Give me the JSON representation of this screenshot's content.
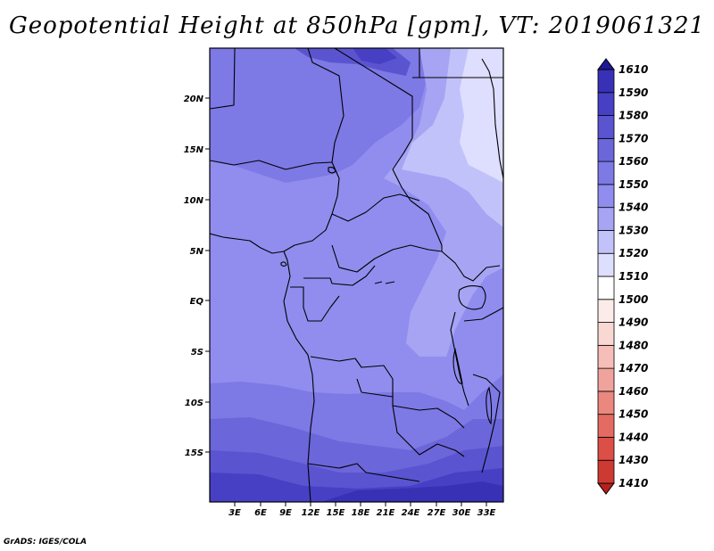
{
  "title": "Geopotential Height at 850hPa [gpm], VT: 2019061321",
  "credit": "GrADS: IGES/COLA",
  "map": {
    "variable": "Geopotential Height",
    "level": "850hPa",
    "units": "gpm",
    "valid_time": "2019061321",
    "lon_labels": [
      "3E",
      "6E",
      "9E",
      "12E",
      "15E",
      "18E",
      "21E",
      "24E",
      "27E",
      "30E",
      "33E"
    ],
    "lat_labels": [
      "20N",
      "15N",
      "10N",
      "5N",
      "EQ",
      "5S",
      "10S",
      "15S"
    ]
  },
  "colorbar": {
    "levels": [
      "1410",
      "1430",
      "1440",
      "1450",
      "1460",
      "1470",
      "1480",
      "1490",
      "1500",
      "1510",
      "1520",
      "1530",
      "1540",
      "1550",
      "1560",
      "1570",
      "1580",
      "1590",
      "1610"
    ],
    "colors": [
      "#b5211c",
      "#cd3a32",
      "#dc4f46",
      "#e46b62",
      "#ea877f",
      "#f0a39c",
      "#f5beb8",
      "#f9d8d4",
      "#fcece9",
      "#ffffff",
      "#dedeff",
      "#c2c2fb",
      "#a6a4f3",
      "#908def",
      "#7d79e5",
      "#6b66da",
      "#5a54d0",
      "#4740c5",
      "#3830b5",
      "#1f1899"
    ]
  },
  "colors": {
    "background": "#ffffff",
    "border": "#000000",
    "field_dominant": "#908def"
  }
}
